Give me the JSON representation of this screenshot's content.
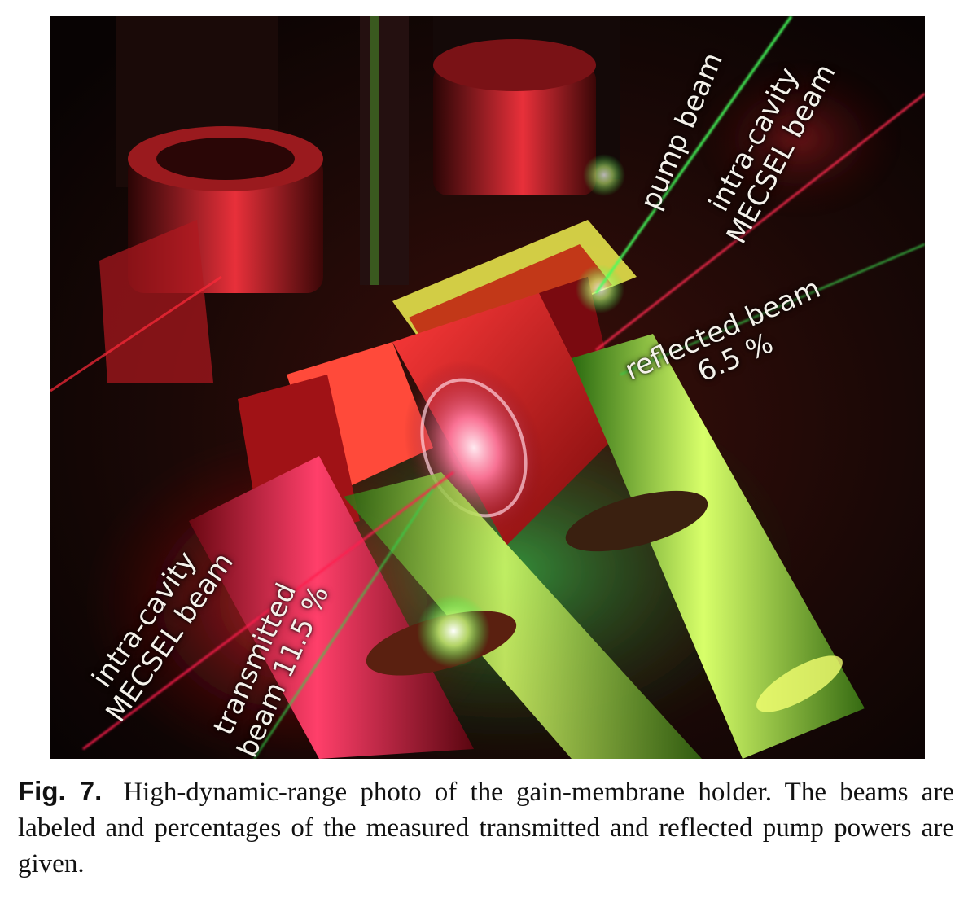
{
  "figure": {
    "photo": {
      "description_labels": {
        "pump_beam": "pump beam",
        "intracavity_top_line1": "intra-cavity",
        "intracavity_top_line2": "MECSEL beam",
        "reflected_line1": "reflected beam",
        "reflected_line2": "6.5 %",
        "intracavity_bottom_line1": "intra-cavity",
        "intracavity_bottom_line2": "MECSEL beam",
        "transmitted_line1": "transmitted",
        "transmitted_line2": "beam  11.5 %"
      },
      "colors": {
        "background": "#120706",
        "laser_red": "#ff1e3c",
        "pump_green": "#37ff5a",
        "holder_red": "#e0202c",
        "glow_yellow": "#e8ff6a"
      }
    },
    "caption": {
      "label": "Fig. 7.",
      "text": "High-dynamic-range photo of the gain-membrane holder. The beams are labeled and percentages of the measured transmitted and reflected pump powers are given."
    }
  }
}
